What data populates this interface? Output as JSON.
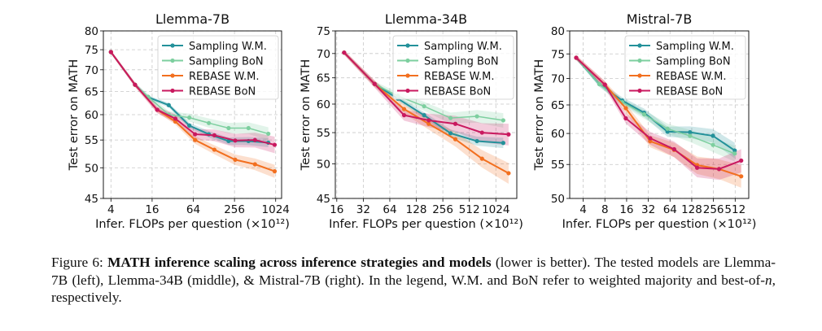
{
  "colors": {
    "sampling_wm": "#23919a",
    "sampling_bon": "#7dcf9f",
    "rebase_wm": "#f26f1f",
    "rebase_bon": "#c9195f",
    "grid": "#c8c8c8"
  },
  "legend": [
    "Sampling W.M.",
    "Sampling BoN",
    "REBASE W.M.",
    "REBASE BoN"
  ],
  "chart_data": [
    {
      "type": "line",
      "title": "Llemma-7B",
      "xlabel": "Infer. FLOPs per question (×10¹²)",
      "ylabel": "Test error on MATH",
      "xscale": "log2",
      "yscale": "log",
      "xlim": [
        3.1,
        1250
      ],
      "ylim": [
        45,
        80
      ],
      "xticks": [
        4,
        16,
        64,
        256,
        1024
      ],
      "yticks": [
        45,
        50,
        55,
        60,
        65,
        70,
        75,
        80
      ],
      "grid": true,
      "legend_position": "top-right",
      "series": [
        {
          "name": "Sampling W.M.",
          "x": [
            4,
            9,
            14,
            28,
            56,
            108,
            210,
            410,
            800
          ],
          "y": [
            74.4,
            66.5,
            63.7,
            62.0,
            57.8,
            56.1,
            54.8,
            54.8,
            54.5
          ]
        },
        {
          "name": "Sampling BoN",
          "x": [
            4,
            9,
            14,
            28,
            56,
            108,
            210,
            410,
            800
          ],
          "y": [
            74.4,
            66.5,
            63.8,
            60.0,
            59.4,
            58.3,
            57.3,
            57.3,
            56.2
          ]
        },
        {
          "name": "REBASE W.M.",
          "x": [
            4,
            9,
            19,
            35,
            68,
            130,
            262,
            510,
            990
          ],
          "y": [
            74.4,
            66.5,
            61.0,
            58.6,
            55.0,
            53.2,
            51.4,
            50.6,
            49.4
          ]
        },
        {
          "name": "REBASE BoN",
          "x": [
            4,
            9,
            19,
            35,
            68,
            130,
            262,
            510,
            990
          ],
          "y": [
            74.4,
            66.5,
            61.0,
            59.2,
            56.1,
            55.9,
            54.9,
            55.0,
            54.1
          ]
        }
      ]
    },
    {
      "type": "line",
      "title": "Llemma-34B",
      "xlabel": "Infer. FLOPs per question (×10¹²)",
      "ylabel": "Test error on MATH",
      "xscale": "log2",
      "yscale": "log",
      "xlim": [
        15.4,
        1770
      ],
      "ylim": [
        45,
        75
      ],
      "xticks": [
        16,
        32,
        64,
        128,
        256,
        512,
        1024
      ],
      "yticks": [
        45,
        50,
        55,
        60,
        65,
        70,
        75
      ],
      "grid": true,
      "legend_position": "top-right",
      "series": [
        {
          "name": "Sampling W.M.",
          "x": [
            19.4,
            43,
            79,
            157,
            313,
            625,
            1243
          ],
          "y": [
            70.2,
            63.8,
            61.0,
            58.0,
            54.9,
            53.6,
            53.3
          ]
        },
        {
          "name": "Sampling BoN",
          "x": [
            19.4,
            43,
            79,
            157,
            313,
            625,
            1243
          ],
          "y": [
            70.2,
            63.8,
            61.5,
            59.6,
            57.5,
            57.8,
            57.1
          ]
        },
        {
          "name": "REBASE W.M.",
          "x": [
            19.4,
            43,
            93,
            177,
            355,
            713,
            1428
          ],
          "y": [
            70.2,
            63.8,
            59.1,
            56.5,
            53.9,
            50.8,
            48.6
          ]
        },
        {
          "name": "REBASE BoN",
          "x": [
            19.4,
            43,
            93,
            177,
            355,
            713,
            1428
          ],
          "y": [
            70.2,
            63.8,
            58.0,
            57.1,
            56.5,
            55.0,
            54.7
          ]
        }
      ]
    },
    {
      "type": "line",
      "title": "Mistral-7B",
      "xlabel": "Infer. FLOPs per question (×10¹²)",
      "ylabel": "Test error on MATH",
      "xscale": "log2",
      "yscale": "log",
      "xlim": [
        2.6,
        790
      ],
      "ylim": [
        50,
        80
      ],
      "xticks": [
        4,
        8,
        16,
        32,
        64,
        128,
        256,
        512
      ],
      "yticks": [
        50,
        55,
        60,
        65,
        70,
        75,
        80
      ],
      "grid": true,
      "legend_position": "top-right",
      "series": [
        {
          "name": "Sampling W.M.",
          "x": [
            3.2,
            6.7,
            13.9,
            28,
            59,
            121,
            252,
            505
          ],
          "y": [
            74.2,
            68.9,
            65.8,
            63.6,
            60.3,
            60.2,
            59.6,
            57.2
          ]
        },
        {
          "name": "Sampling BoN",
          "x": [
            3.2,
            6.7,
            13.9,
            28,
            59,
            121,
            252,
            505
          ],
          "y": [
            74.2,
            68.9,
            65.5,
            63.3,
            60.8,
            59.6,
            58.1,
            56.7
          ]
        },
        {
          "name": "REBASE W.M.",
          "x": [
            3.2,
            8,
            15.6,
            34,
            73,
            152,
            306,
            621
          ],
          "y": [
            74.2,
            68.8,
            64.4,
            58.7,
            57.3,
            54.9,
            54.3,
            53.2
          ]
        },
        {
          "name": "REBASE BoN",
          "x": [
            3.2,
            8,
            15.6,
            34,
            73,
            152,
            306,
            621
          ],
          "y": [
            74.2,
            68.8,
            62.6,
            59.2,
            57.4,
            54.5,
            54.3,
            55.6
          ]
        }
      ]
    }
  ],
  "caption": {
    "label": "Figure 6: ",
    "bold": "MATH inference scaling across inference strategies and models",
    "rest": " (lower is better). The tested models are Llemma-7B (left), Llemma-34B (middle), & Mistral-7B (right). In the legend, W.M. and BoN refer to weighted majority and best-of-",
    "n": "n",
    "end": ", respectively."
  }
}
